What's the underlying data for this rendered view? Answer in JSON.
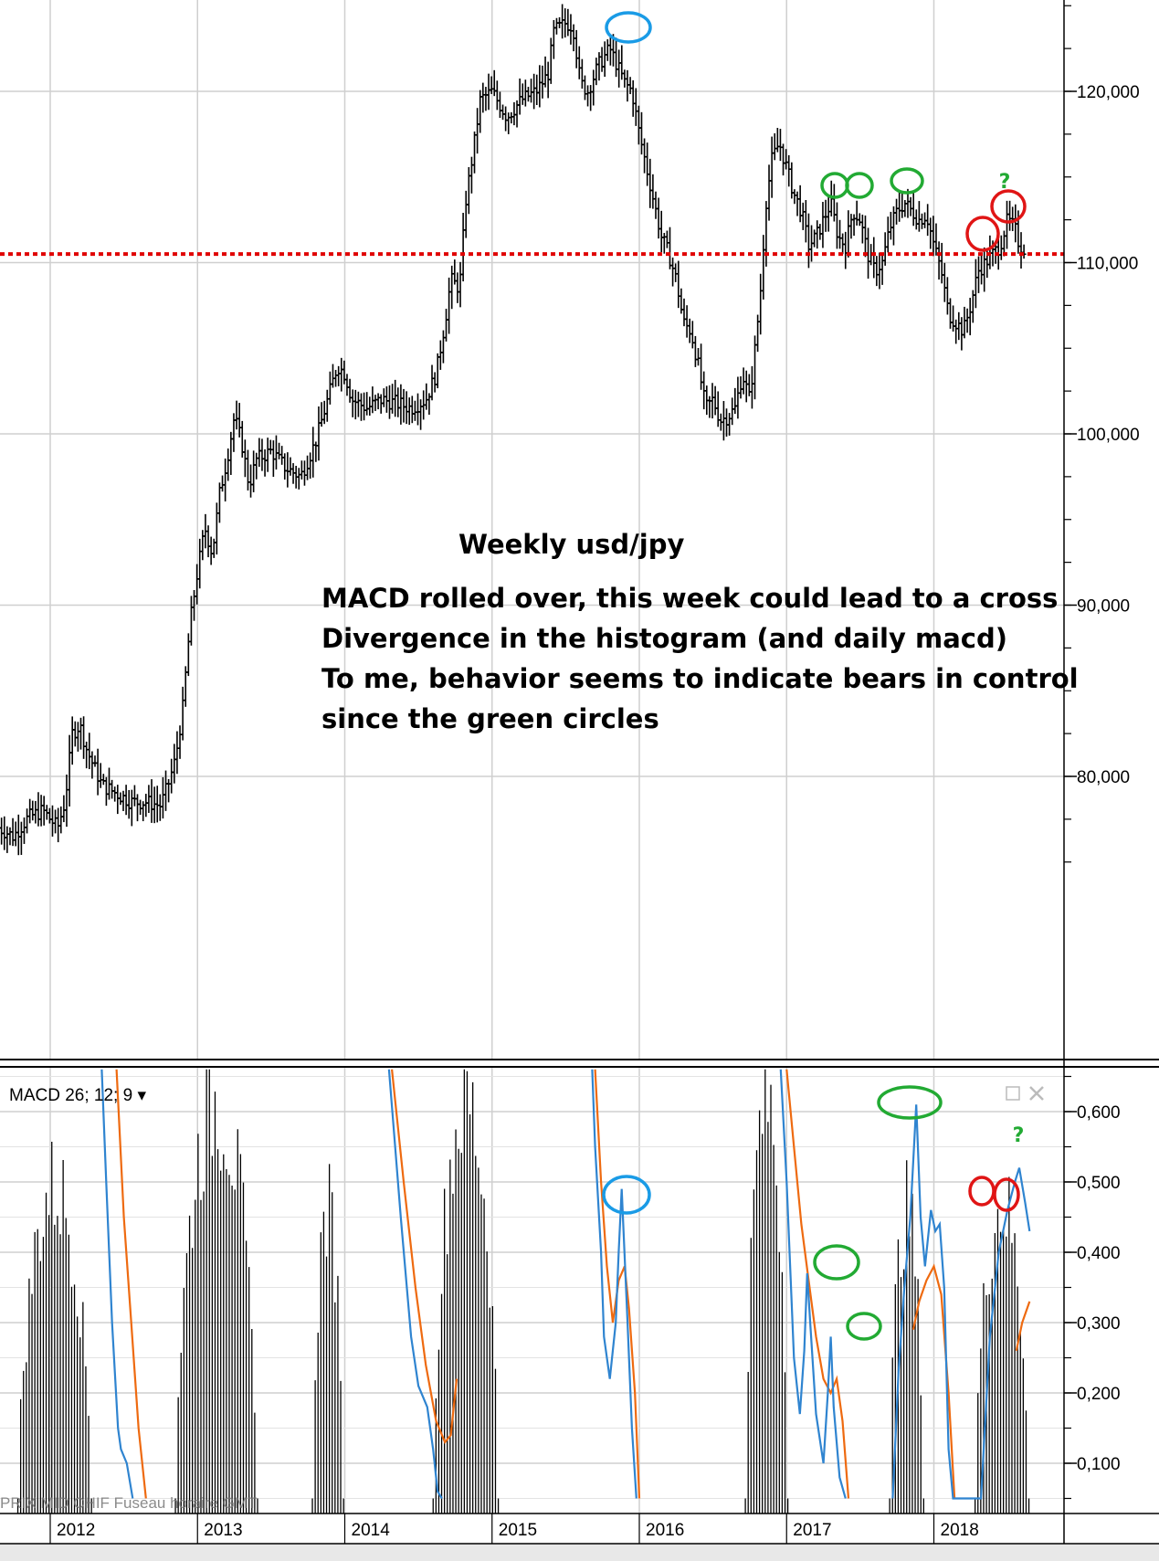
{
  "chart_data": [
    {
      "type": "candlestick",
      "title": "",
      "x_ticks": [
        "2012",
        "2013",
        "2014",
        "2015",
        "2016",
        "2017",
        "2018"
      ],
      "y_ticks": [
        "120,000",
        "110,000",
        "100,000",
        "90,000",
        "80,000"
      ],
      "y_tick_values": [
        120,
        110,
        100,
        90,
        80
      ],
      "ylim": [
        73,
        125
      ],
      "xlim": [
        2011.65,
        2018.78
      ],
      "grid": true,
      "close_series": [
        [
          2011.65,
          77.0
        ],
        [
          2011.75,
          76.5
        ],
        [
          2011.85,
          77.6
        ],
        [
          2011.95,
          78.0
        ],
        [
          2012.05,
          77.0
        ],
        [
          2012.1,
          78.5
        ],
        [
          2012.15,
          82.5
        ],
        [
          2012.2,
          83.0
        ],
        [
          2012.25,
          81.5
        ],
        [
          2012.3,
          80.5
        ],
        [
          2012.35,
          79.5
        ],
        [
          2012.45,
          79.0
        ],
        [
          2012.55,
          78.5
        ],
        [
          2012.65,
          78.5
        ],
        [
          2012.75,
          78.3
        ],
        [
          2012.8,
          79.5
        ],
        [
          2012.85,
          81.0
        ],
        [
          2012.9,
          84.0
        ],
        [
          2012.95,
          89.0
        ],
        [
          2013.0,
          92.0
        ],
        [
          2013.05,
          94.5
        ],
        [
          2013.1,
          93.0
        ],
        [
          2013.15,
          96.5
        ],
        [
          2013.2,
          98.5
        ],
        [
          2013.25,
          101.0
        ],
        [
          2013.3,
          99.5
        ],
        [
          2013.35,
          97.0
        ],
        [
          2013.4,
          98.5
        ],
        [
          2013.5,
          99.0
        ],
        [
          2013.6,
          98.0
        ],
        [
          2013.7,
          97.5
        ],
        [
          2013.8,
          99.5
        ],
        [
          2013.9,
          102.5
        ],
        [
          2013.95,
          104.0
        ],
        [
          2014.0,
          103.5
        ],
        [
          2014.05,
          102.0
        ],
        [
          2014.15,
          101.5
        ],
        [
          2014.25,
          102.0
        ],
        [
          2014.35,
          101.8
        ],
        [
          2014.45,
          101.5
        ],
        [
          2014.55,
          102.0
        ],
        [
          2014.62,
          103.5
        ],
        [
          2014.68,
          106.5
        ],
        [
          2014.72,
          109.0
        ],
        [
          2014.78,
          108.5
        ],
        [
          2014.82,
          113.5
        ],
        [
          2014.88,
          117.0
        ],
        [
          2014.92,
          119.5
        ],
        [
          2015.0,
          120.0
        ],
        [
          2015.1,
          118.5
        ],
        [
          2015.2,
          119.5
        ],
        [
          2015.3,
          120.0
        ],
        [
          2015.38,
          121.0
        ],
        [
          2015.42,
          123.5
        ],
        [
          2015.5,
          124.0
        ],
        [
          2015.55,
          123.8
        ],
        [
          2015.6,
          120.5
        ],
        [
          2015.65,
          120.0
        ],
        [
          2015.72,
          121.5
        ],
        [
          2015.8,
          122.5
        ],
        [
          2015.9,
          120.5
        ],
        [
          2015.95,
          120.0
        ],
        [
          2016.0,
          117.5
        ],
        [
          2016.05,
          115.5
        ],
        [
          2016.1,
          113.5
        ],
        [
          2016.15,
          111.5
        ],
        [
          2016.2,
          110.5
        ],
        [
          2016.25,
          109.0
        ],
        [
          2016.3,
          106.5
        ],
        [
          2016.35,
          106.0
        ],
        [
          2016.4,
          104.0
        ],
        [
          2016.45,
          101.5
        ],
        [
          2016.5,
          102.0
        ],
        [
          2016.55,
          100.8
        ],
        [
          2016.6,
          101.0
        ],
        [
          2016.65,
          101.5
        ],
        [
          2016.7,
          103.5
        ],
        [
          2016.75,
          102.0
        ],
        [
          2016.78,
          104.5
        ],
        [
          2016.82,
          108.0
        ],
        [
          2016.86,
          113.5
        ],
        [
          2016.9,
          116.0
        ],
        [
          2016.95,
          117.0
        ],
        [
          2017.0,
          115.5
        ],
        [
          2017.05,
          114.0
        ],
        [
          2017.1,
          113.0
        ],
        [
          2017.15,
          111.0
        ],
        [
          2017.2,
          111.5
        ],
        [
          2017.25,
          112.5
        ],
        [
          2017.3,
          113.5
        ],
        [
          2017.35,
          111.5
        ],
        [
          2017.4,
          111.0
        ],
        [
          2017.45,
          113.0
        ],
        [
          2017.5,
          112.5
        ],
        [
          2017.55,
          110.5
        ],
        [
          2017.6,
          109.5
        ],
        [
          2017.65,
          110.0
        ],
        [
          2017.7,
          112.0
        ],
        [
          2017.75,
          113.0
        ],
        [
          2017.8,
          113.5
        ],
        [
          2017.85,
          113.0
        ],
        [
          2017.9,
          112.5
        ],
        [
          2017.95,
          112.8
        ],
        [
          2018.0,
          111.0
        ],
        [
          2018.05,
          109.5
        ],
        [
          2018.1,
          107.0
        ],
        [
          2018.15,
          106.5
        ],
        [
          2018.2,
          106.0
        ],
        [
          2018.25,
          107.5
        ],
        [
          2018.3,
          109.5
        ],
        [
          2018.35,
          110.0
        ],
        [
          2018.4,
          110.5
        ],
        [
          2018.45,
          111.0
        ],
        [
          2018.5,
          112.5
        ],
        [
          2018.55,
          112.0
        ],
        [
          2018.58,
          111.0
        ],
        [
          2018.62,
          110.8
        ]
      ],
      "horizontal_line": 110.5
    },
    {
      "type": "macd",
      "title": "MACD 26; 12; 9 ▾",
      "y_ticks": [
        "0,600",
        "0,500",
        "0,400",
        "0,300",
        "0,200",
        "0,100"
      ],
      "y_tick_values": [
        0.6,
        0.5,
        0.4,
        0.3,
        0.2,
        0.1
      ],
      "ylim": [
        0.05,
        0.66
      ],
      "macd_line": [
        [
          2012.35,
          0.66
        ],
        [
          2012.38,
          0.5
        ],
        [
          2012.42,
          0.3
        ],
        [
          2012.46,
          0.15
        ],
        [
          2012.48,
          0.12
        ],
        [
          2012.52,
          0.1
        ],
        [
          2012.56,
          0.05
        ],
        [
          2012.9,
          0.66
        ],
        [
          2014.3,
          0.66
        ],
        [
          2014.38,
          0.45
        ],
        [
          2014.45,
          0.28
        ],
        [
          2014.5,
          0.21
        ],
        [
          2014.56,
          0.18
        ],
        [
          2014.6,
          0.12
        ],
        [
          2014.63,
          0.06
        ],
        [
          2014.66,
          0.05
        ],
        [
          2015.68,
          0.66
        ],
        [
          2015.7,
          0.55
        ],
        [
          2015.74,
          0.4
        ],
        [
          2015.76,
          0.28
        ],
        [
          2015.8,
          0.22
        ],
        [
          2015.84,
          0.3
        ],
        [
          2015.86,
          0.4
        ],
        [
          2015.88,
          0.49
        ],
        [
          2015.92,
          0.3
        ],
        [
          2015.95,
          0.15
        ],
        [
          2015.98,
          0.05
        ],
        [
          2016.96,
          0.66
        ],
        [
          2017.0,
          0.5
        ],
        [
          2017.05,
          0.25
        ],
        [
          2017.09,
          0.17
        ],
        [
          2017.12,
          0.26
        ],
        [
          2017.14,
          0.37
        ],
        [
          2017.16,
          0.3
        ],
        [
          2017.2,
          0.17
        ],
        [
          2017.25,
          0.1
        ],
        [
          2017.28,
          0.2
        ],
        [
          2017.3,
          0.28
        ],
        [
          2017.32,
          0.18
        ],
        [
          2017.36,
          0.08
        ],
        [
          2017.4,
          0.05
        ],
        [
          2017.72,
          0.05
        ],
        [
          2017.76,
          0.23
        ],
        [
          2017.8,
          0.35
        ],
        [
          2017.84,
          0.45
        ],
        [
          2017.88,
          0.61
        ],
        [
          2017.91,
          0.45
        ],
        [
          2017.94,
          0.38
        ],
        [
          2017.98,
          0.46
        ],
        [
          2018.01,
          0.43
        ],
        [
          2018.04,
          0.44
        ],
        [
          2018.07,
          0.35
        ],
        [
          2018.1,
          0.12
        ],
        [
          2018.13,
          0.05
        ],
        [
          2018.32,
          0.05
        ],
        [
          2018.38,
          0.28
        ],
        [
          2018.44,
          0.4
        ],
        [
          2018.5,
          0.46
        ],
        [
          2018.55,
          0.5
        ],
        [
          2018.58,
          0.52
        ],
        [
          2018.62,
          0.47
        ],
        [
          2018.65,
          0.43
        ]
      ],
      "signal_line": [
        [
          2012.45,
          0.66
        ],
        [
          2012.5,
          0.45
        ],
        [
          2012.55,
          0.3
        ],
        [
          2012.6,
          0.15
        ],
        [
          2012.65,
          0.05
        ],
        [
          2014.32,
          0.66
        ],
        [
          2014.4,
          0.5
        ],
        [
          2014.48,
          0.35
        ],
        [
          2014.55,
          0.24
        ],
        [
          2014.62,
          0.16
        ],
        [
          2014.68,
          0.13
        ],
        [
          2014.72,
          0.14
        ],
        [
          2014.76,
          0.22
        ],
        [
          2015.7,
          0.66
        ],
        [
          2015.74,
          0.5
        ],
        [
          2015.78,
          0.38
        ],
        [
          2015.82,
          0.3
        ],
        [
          2015.86,
          0.36
        ],
        [
          2015.9,
          0.38
        ],
        [
          2015.93,
          0.32
        ],
        [
          2015.97,
          0.2
        ],
        [
          2016.0,
          0.05
        ],
        [
          2017.0,
          0.66
        ],
        [
          2017.05,
          0.55
        ],
        [
          2017.1,
          0.44
        ],
        [
          2017.15,
          0.36
        ],
        [
          2017.2,
          0.28
        ],
        [
          2017.25,
          0.22
        ],
        [
          2017.3,
          0.2
        ],
        [
          2017.34,
          0.22
        ],
        [
          2017.38,
          0.16
        ],
        [
          2017.42,
          0.05
        ],
        [
          2017.86,
          0.29
        ],
        [
          2017.9,
          0.33
        ],
        [
          2017.95,
          0.36
        ],
        [
          2018.0,
          0.38
        ],
        [
          2018.05,
          0.34
        ],
        [
          2018.1,
          0.2
        ],
        [
          2018.14,
          0.05
        ],
        [
          2018.56,
          0.26
        ],
        [
          2018.6,
          0.3
        ],
        [
          2018.65,
          0.33
        ]
      ],
      "histogram_clusters": [
        {
          "start": 2011.78,
          "end": 2012.28,
          "peak_frac": 0.78
        },
        {
          "start": 2012.85,
          "end": 2013.4,
          "peak_frac": 1.0
        },
        {
          "start": 2013.78,
          "end": 2014.0,
          "peak_frac": 0.72
        },
        {
          "start": 2014.6,
          "end": 2015.05,
          "peak_frac": 1.0
        },
        {
          "start": 2016.72,
          "end": 2017.0,
          "peak_frac": 1.0
        },
        {
          "start": 2017.7,
          "end": 2017.93,
          "peak_frac": 0.72
        },
        {
          "start": 2018.28,
          "end": 2018.65,
          "peak_frac": 0.74
        }
      ]
    }
  ],
  "annotations": {
    "title": "Weekly usd/jpy",
    "lines": [
      "MACD rolled over, this week could lead to a cross",
      "Divergence in the histogram (and daily macd)",
      "To me, behavior seems to indicate bears in control",
      "since the green circles"
    ],
    "question_mark": "?"
  },
  "footer": "PRIX MID CHIF   Fuseau horaire GMT",
  "colors": {
    "candles": "#000000",
    "grid": "#cfcfcf",
    "redline": "#e00000",
    "macd": "#2f84d0",
    "signal": "#ee6a10",
    "fill_orange": "#f8c9a8",
    "fill_blue": "#bcd9f2",
    "circle_blue": "#1a9be6",
    "circle_green": "#22aa33",
    "circle_red": "#e01515"
  }
}
